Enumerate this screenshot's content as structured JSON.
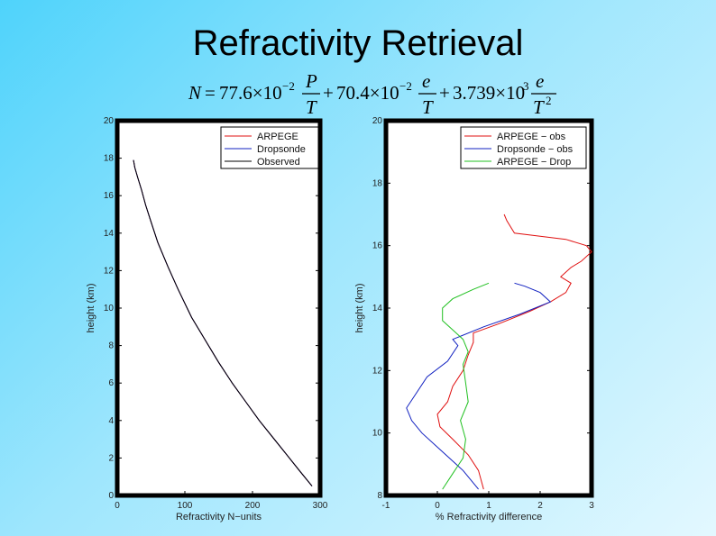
{
  "slide": {
    "title": "Refractivity Retrieval",
    "formula": {
      "lhs": "N",
      "t1_coef": "77.6×10",
      "t1_exp": "−2",
      "t1_num": "P",
      "t1_den": "T",
      "t2_coef": "70.4×10",
      "t2_exp": "−2",
      "t2_num": "e",
      "t2_den": "T",
      "t3_coef": "3.739×10",
      "t3_exp": "3",
      "t3_num": "e",
      "t3_den": "T",
      "t3_den_exp": "2"
    }
  },
  "chart_data": [
    {
      "type": "line",
      "xlabel": "Refractivity N−units",
      "ylabel": "height (km)",
      "xlim": [
        0,
        300
      ],
      "ylim": [
        0,
        20
      ],
      "xticks": [
        0,
        100,
        200,
        300
      ],
      "yticks": [
        0,
        2,
        4,
        6,
        8,
        10,
        12,
        14,
        16,
        18,
        20
      ],
      "legend_position": "top-right",
      "series": [
        {
          "name": "ARPEGE",
          "color": "#e01010",
          "x": [
            288,
            270,
            250,
            230,
            210,
            190,
            170,
            150,
            130,
            110,
            90,
            75,
            60,
            50,
            42,
            36,
            30,
            26,
            24
          ],
          "y": [
            0.5,
            1.3,
            2.2,
            3.1,
            4.0,
            5.0,
            6.0,
            7.1,
            8.3,
            9.5,
            11.0,
            12.2,
            13.5,
            14.6,
            15.5,
            16.3,
            17.0,
            17.5,
            17.9
          ]
        },
        {
          "name": "Dropsonde",
          "color": "#1020c0",
          "x": [
            288,
            270,
            250,
            230,
            210,
            190,
            170,
            150,
            130,
            110,
            90,
            75,
            60,
            50,
            42,
            36,
            30,
            26,
            24
          ],
          "y": [
            0.5,
            1.3,
            2.2,
            3.1,
            4.0,
            5.0,
            6.0,
            7.1,
            8.3,
            9.5,
            11.0,
            12.2,
            13.5,
            14.6,
            15.5,
            16.3,
            17.0,
            17.5,
            17.9
          ]
        },
        {
          "name": "Observed",
          "color": "#000000",
          "x": [
            288,
            270,
            250,
            230,
            210,
            190,
            170,
            150,
            130,
            110,
            90,
            75,
            60,
            50,
            42,
            36,
            30,
            26,
            24
          ],
          "y": [
            0.5,
            1.3,
            2.2,
            3.1,
            4.0,
            5.0,
            6.0,
            7.1,
            8.3,
            9.5,
            11.0,
            12.2,
            13.5,
            14.6,
            15.5,
            16.3,
            17.0,
            17.5,
            17.9
          ]
        }
      ]
    },
    {
      "type": "line",
      "xlabel": "% Refractivity difference",
      "ylabel": "height (km)",
      "xlim": [
        -1,
        3
      ],
      "ylim": [
        8,
        20
      ],
      "xticks": [
        -1,
        0,
        1,
        2,
        3
      ],
      "yticks": [
        8,
        10,
        12,
        14,
        16,
        18,
        20
      ],
      "legend_position": "top-right",
      "series": [
        {
          "name": "ARPEGE − obs",
          "color": "#e01010",
          "x": [
            0.9,
            0.8,
            0.6,
            0.3,
            0.05,
            0.0,
            0.2,
            0.3,
            0.5,
            0.6,
            0.7,
            0.7,
            1.2,
            1.8,
            2.2,
            2.5,
            2.6,
            2.4,
            2.6,
            2.8,
            3.0,
            2.9,
            2.5,
            2.0,
            1.5,
            1.35,
            1.3
          ],
          "y": [
            8.2,
            8.8,
            9.3,
            9.8,
            10.2,
            10.6,
            11.0,
            11.5,
            12.0,
            12.5,
            12.9,
            13.2,
            13.5,
            13.9,
            14.2,
            14.5,
            14.8,
            15.0,
            15.3,
            15.5,
            15.8,
            16.0,
            16.2,
            16.3,
            16.4,
            16.8,
            17.0
          ]
        },
        {
          "name": "Dropsonde − obs",
          "color": "#1020c0",
          "x": [
            0.8,
            0.5,
            0.1,
            -0.3,
            -0.5,
            -0.6,
            -0.4,
            -0.2,
            0.2,
            0.4,
            0.3,
            0.9,
            1.6,
            2.2,
            2.0,
            1.7,
            1.5
          ],
          "y": [
            8.2,
            8.8,
            9.4,
            10.0,
            10.4,
            10.8,
            11.3,
            11.8,
            12.3,
            12.8,
            13.0,
            13.4,
            13.8,
            14.2,
            14.5,
            14.7,
            14.8
          ]
        },
        {
          "name": "ARPEGE − Drop",
          "color": "#20c020",
          "x": [
            0.1,
            0.3,
            0.5,
            0.55,
            0.45,
            0.6,
            0.55,
            0.5,
            0.6,
            0.5,
            0.3,
            0.1,
            0.1,
            0.3,
            0.7,
            1.0
          ],
          "y": [
            8.2,
            8.7,
            9.2,
            9.8,
            10.4,
            11.0,
            11.6,
            12.2,
            12.6,
            13.0,
            13.3,
            13.6,
            14.0,
            14.3,
            14.6,
            14.8
          ]
        }
      ]
    }
  ]
}
